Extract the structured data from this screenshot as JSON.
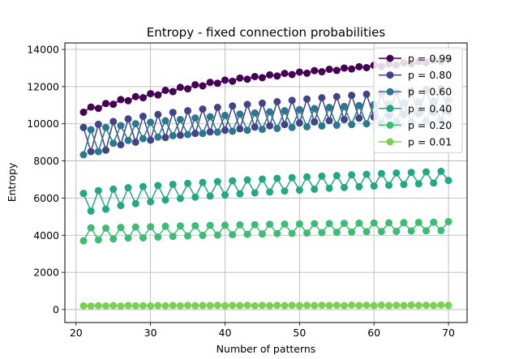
{
  "chart_data": {
    "type": "line",
    "title": "Entropy - fixed connection probabilities",
    "xlabel": "Number of patterns",
    "ylabel": "Entropy",
    "xlim": [
      18.5,
      72.5
    ],
    "ylim": [
      -700,
      14350
    ],
    "xticks": [
      20,
      30,
      40,
      50,
      60,
      70
    ],
    "yticks": [
      0,
      2000,
      4000,
      6000,
      8000,
      10000,
      12000,
      14000
    ],
    "grid": true,
    "legend_position": "top-right",
    "marker": "circle",
    "x": [
      21,
      22,
      23,
      24,
      25,
      26,
      27,
      28,
      29,
      30,
      31,
      32,
      33,
      34,
      35,
      36,
      37,
      38,
      39,
      40,
      41,
      42,
      43,
      44,
      45,
      46,
      47,
      48,
      49,
      50,
      51,
      52,
      53,
      54,
      55,
      56,
      57,
      58,
      59,
      60,
      61,
      62,
      63,
      64,
      65,
      66,
      67,
      68,
      69,
      70
    ],
    "series": [
      {
        "name": "p = 0.99",
        "color": "#440154",
        "values": [
          10620,
          10900,
          10830,
          11090,
          11050,
          11300,
          11240,
          11460,
          11400,
          11620,
          11550,
          11800,
          11730,
          11960,
          11880,
          12100,
          12040,
          12230,
          12180,
          12350,
          12290,
          12460,
          12400,
          12540,
          12480,
          12630,
          12570,
          12710,
          12650,
          12780,
          12720,
          12860,
          12800,
          12930,
          12870,
          13000,
          12950,
          13070,
          13020,
          13150,
          13090,
          13220,
          13160,
          13280,
          13230,
          13350,
          13290,
          13420,
          13360,
          13480
        ]
      },
      {
        "name": "p = 0.80",
        "color": "#414487",
        "values": [
          9800,
          8500,
          9970,
          8580,
          10120,
          8870,
          10260,
          9010,
          10400,
          9120,
          10500,
          9260,
          10610,
          9380,
          10700,
          9480,
          10790,
          9560,
          10880,
          9650,
          10960,
          9730,
          11040,
          9820,
          11110,
          9890,
          11190,
          9960,
          11260,
          10040,
          11330,
          10100,
          11400,
          10170,
          11460,
          10230,
          11530,
          10300,
          11590,
          10360,
          11650,
          10420,
          11710,
          10480,
          11770,
          10540,
          11830,
          10600,
          11890,
          10650
        ]
      },
      {
        "name": "p = 0.60",
        "color": "#2a788e",
        "values": [
          8330,
          9680,
          8500,
          9800,
          8950,
          9900,
          9100,
          10000,
          9200,
          10080,
          9280,
          10160,
          9360,
          10230,
          9420,
          10310,
          9480,
          10380,
          9550,
          10450,
          9600,
          10520,
          9650,
          10580,
          9700,
          10640,
          9750,
          10700,
          9800,
          10760,
          9840,
          10820,
          9880,
          10880,
          9920,
          10930,
          9960,
          10980,
          10000,
          11030,
          10040,
          11080,
          10080,
          11130,
          10110,
          11180,
          10150,
          11230,
          10180,
          11280
        ]
      },
      {
        "name": "p = 0.40",
        "color": "#22a884",
        "values": [
          6250,
          5300,
          6400,
          5400,
          6480,
          5600,
          6560,
          5700,
          6620,
          5800,
          6680,
          5900,
          6740,
          5980,
          6790,
          6050,
          6840,
          6110,
          6890,
          6170,
          6930,
          6230,
          6980,
          6280,
          7020,
          6330,
          7060,
          6380,
          7100,
          6430,
          7140,
          6480,
          7180,
          6530,
          7210,
          6570,
          7250,
          6610,
          7280,
          6650,
          7320,
          6690,
          7350,
          6730,
          7380,
          6770,
          7410,
          6810,
          7440,
          6950
        ]
      },
      {
        "name": "p = 0.20",
        "color": "#3dbc74",
        "values": [
          3700,
          4400,
          3750,
          4380,
          3800,
          4420,
          3850,
          4440,
          3860,
          4460,
          3900,
          4480,
          3940,
          4500,
          3960,
          4510,
          3990,
          4530,
          4010,
          4540,
          4030,
          4560,
          4050,
          4570,
          4070,
          4590,
          4090,
          4600,
          4100,
          4610,
          4120,
          4620,
          4140,
          4630,
          4160,
          4640,
          4170,
          4650,
          4190,
          4660,
          4200,
          4670,
          4210,
          4680,
          4230,
          4690,
          4240,
          4700,
          4250,
          4730
        ]
      },
      {
        "name": "p = 0.01",
        "color": "#7ad151",
        "values": [
          200,
          190,
          210,
          195,
          215,
          185,
          220,
          200,
          210,
          195,
          215,
          205,
          220,
          200,
          225,
          210,
          220,
          215,
          230,
          210,
          225,
          215,
          230,
          205,
          225,
          210,
          230,
          215,
          235,
          210,
          230,
          215,
          235,
          220,
          230,
          215,
          240,
          220,
          235,
          220,
          240,
          215,
          235,
          220,
          240,
          225,
          235,
          220,
          245,
          225
        ]
      }
    ]
  }
}
